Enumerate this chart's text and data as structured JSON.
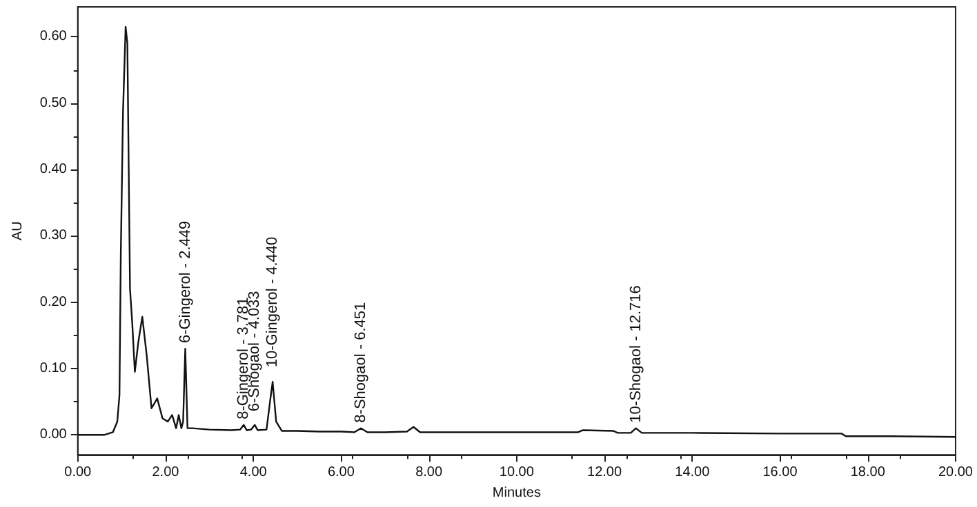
{
  "chart_data": {
    "type": "line",
    "xlabel": "Minutes",
    "ylabel": "AU",
    "xlim": [
      0,
      20
    ],
    "ylim": [
      -0.03,
      0.645
    ],
    "xticks": [
      {
        "value": 0,
        "label": "0.00"
      },
      {
        "value": 2,
        "label": "2.00"
      },
      {
        "value": 4,
        "label": "4.00"
      },
      {
        "value": 6,
        "label": "6.00"
      },
      {
        "value": 8,
        "label": "8.00"
      },
      {
        "value": 10,
        "label": "10.00"
      },
      {
        "value": 12,
        "label": "12.00"
      },
      {
        "value": 14,
        "label": "14.00"
      },
      {
        "value": 16,
        "label": "16.00"
      },
      {
        "value": 18,
        "label": "18.00"
      },
      {
        "value": 20,
        "label": "20.00"
      }
    ],
    "yticks": [
      {
        "value": 0,
        "label": "0.00"
      },
      {
        "value": 0.1,
        "label": "0.10"
      },
      {
        "value": 0.2,
        "label": "0.20"
      },
      {
        "value": 0.3,
        "label": "0.30"
      },
      {
        "value": 0.4,
        "label": "0.40"
      },
      {
        "value": 0.5,
        "label": "0.50"
      },
      {
        "value": 0.6,
        "label": "0.60"
      }
    ],
    "grid": false,
    "marker": "none",
    "line_style": "solid",
    "series": [
      {
        "color": "#111111",
        "x": [
          0,
          0.6,
          0.8,
          0.9,
          0.95,
          0.98,
          1.03,
          1.09,
          1.13,
          1.19,
          1.24,
          1.3,
          1.38,
          1.47,
          1.57,
          1.68,
          1.81,
          1.93,
          2.05,
          2.15,
          2.24,
          2.3,
          2.36,
          2.4,
          2.449,
          2.5,
          2.6,
          3.0,
          3.5,
          3.7,
          3.781,
          3.85,
          3.95,
          4.033,
          4.1,
          4.3,
          4.38,
          4.44,
          4.52,
          4.65,
          5.0,
          5.5,
          6.0,
          6.3,
          6.451,
          6.6,
          7.0,
          7.5,
          7.65,
          7.8,
          8.5,
          10.0,
          11.4,
          11.5,
          12.2,
          12.3,
          12.6,
          12.716,
          12.85,
          14.0,
          16.0,
          17.4,
          17.5,
          18.5,
          20.0
        ],
        "values": [
          0,
          0,
          0.004,
          0.02,
          0.06,
          0.27,
          0.485,
          0.615,
          0.59,
          0.22,
          0.17,
          0.095,
          0.14,
          0.178,
          0.12,
          0.04,
          0.055,
          0.025,
          0.02,
          0.03,
          0.01,
          0.03,
          0.01,
          0.02,
          0.13,
          0.01,
          0.01,
          0.008,
          0.007,
          0.008,
          0.015,
          0.007,
          0.008,
          0.015,
          0.007,
          0.008,
          0.05,
          0.08,
          0.02,
          0.006,
          0.006,
          0.005,
          0.005,
          0.004,
          0.01,
          0.004,
          0.004,
          0.005,
          0.012,
          0.004,
          0.004,
          0.004,
          0.004,
          0.007,
          0.006,
          0.003,
          0.003,
          0.01,
          0.003,
          0.003,
          0.002,
          0.002,
          -0.002,
          -0.002,
          -0.003
        ]
      }
    ],
    "annotations": [
      {
        "text": "6-Gingerol - 2.449",
        "x": 2.449,
        "y": 0.13
      },
      {
        "text": "8-Gingerol - 3.781",
        "x": 3.781,
        "y": 0.015
      },
      {
        "text": "6-Shogaol - 4.033",
        "x": 4.033,
        "y": 0.015
      },
      {
        "text": "10-Gingerol - 4.440",
        "x": 4.44,
        "y": 0.08
      },
      {
        "text": "8-Shogaol - 6.451",
        "x": 6.451,
        "y": 0.01
      },
      {
        "text": "10-Shogaol - 12.716",
        "x": 12.716,
        "y": 0.01
      }
    ]
  }
}
